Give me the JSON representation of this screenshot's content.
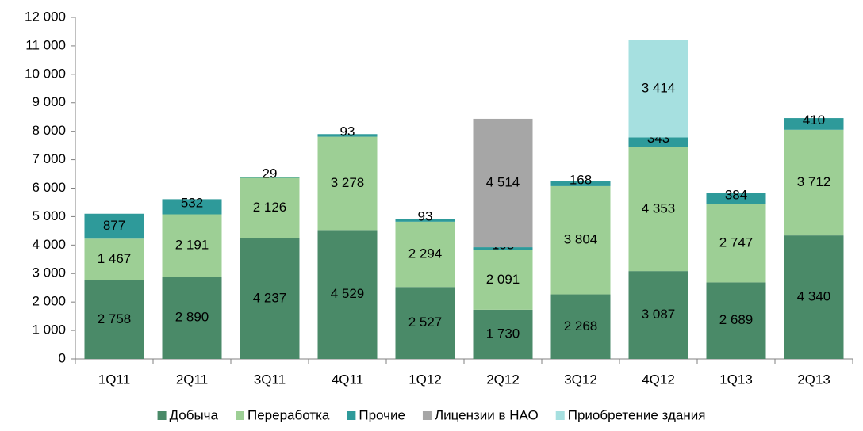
{
  "chart_data": {
    "type": "stacked_bar",
    "categories": [
      "1Q11",
      "2Q11",
      "3Q11",
      "4Q11",
      "1Q12",
      "2Q12",
      "3Q12",
      "4Q12",
      "1Q13",
      "2Q13"
    ],
    "series": [
      {
        "name": "Добыча",
        "color": "#4a8a68",
        "values": [
          2758,
          2890,
          4237,
          4529,
          2527,
          1730,
          2268,
          3087,
          2689,
          4340
        ],
        "value_labels": [
          "2 758",
          "2 890",
          "4 237",
          "4 529",
          "2 527",
          "1 730",
          "2 268",
          "3 087",
          "2 689",
          "4 340"
        ]
      },
      {
        "name": "Переработка",
        "color": "#9dcf95",
        "values": [
          1467,
          2191,
          2126,
          3278,
          2294,
          2091,
          3804,
          4353,
          2747,
          3712
        ],
        "value_labels": [
          "1 467",
          "2 191",
          "2 126",
          "3 278",
          "2 294",
          "2 091",
          "3 804",
          "4 353",
          "2 747",
          "3 712"
        ]
      },
      {
        "name": "Прочие",
        "color": "#2e9a9a",
        "values": [
          877,
          532,
          29,
          93,
          93,
          103,
          168,
          343,
          384,
          410
        ]
      },
      {
        "name": "Лицензии в НАО",
        "color": "#a6a6a6",
        "values": [
          null,
          null,
          null,
          null,
          null,
          4514,
          null,
          null,
          null,
          null
        ],
        "value_labels": [
          null,
          null,
          null,
          null,
          null,
          "4 514",
          null,
          null,
          null,
          null
        ]
      },
      {
        "name": "Приобретение здания",
        "color": "#a6e0e0",
        "values": [
          null,
          null,
          null,
          null,
          null,
          null,
          null,
          3414,
          null,
          null
        ],
        "value_labels": [
          null,
          null,
          null,
          null,
          null,
          null,
          null,
          "3 414",
          null,
          null
        ]
      }
    ],
    "ylim": [
      0,
      12000
    ],
    "yticks": [
      0,
      {
        "value": 1000,
        "label": "1 000"
      },
      {
        "value": 2000,
        "label": "2 000"
      },
      {
        "value": 3000,
        "label": "3 000"
      },
      {
        "value": 4000,
        "label": "4 000"
      },
      {
        "value": 5000,
        "label": "5 000"
      },
      {
        "value": 6000,
        "label": "6 000"
      },
      {
        "value": 7000,
        "label": "7 000"
      },
      {
        "value": 8000,
        "label": "8 000"
      },
      {
        "value": 9000,
        "label": "9 000"
      },
      {
        "value": 10000,
        "label": "10 000"
      },
      {
        "value": 11000,
        "label": "11 000"
      },
      {
        "value": 12000,
        "label": "12 000"
      }
    ],
    "grid": false,
    "legend": "bottom"
  }
}
